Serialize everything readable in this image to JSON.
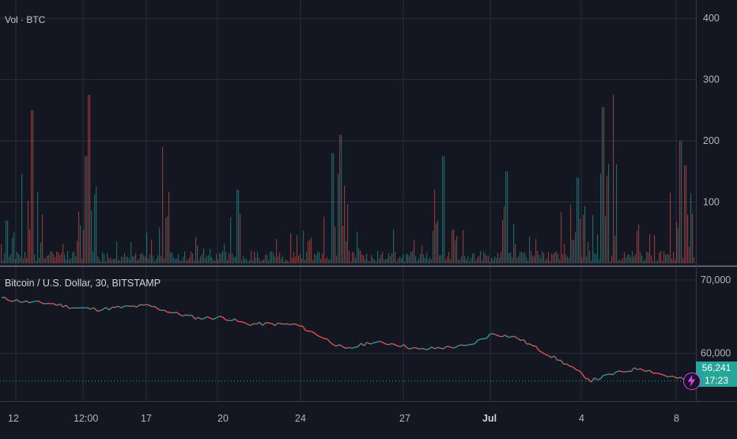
{
  "volume_pane": {
    "label": "Vol · BTC",
    "axis_ticks": [
      "400",
      "300",
      "200",
      "100"
    ]
  },
  "price_pane": {
    "label": "Bitcoin / U.S. Dollar, 30, BITSTAMP",
    "axis_ticks": [
      "70,000",
      "60,000"
    ],
    "last_price": "56,241",
    "countdown": "17:23"
  },
  "time_axis": {
    "labels": [
      "12",
      "12:00",
      "17",
      "20",
      "24",
      "27",
      "Jul",
      "4",
      "8"
    ]
  },
  "colors": {
    "background": "#131722",
    "up": "#26a69a",
    "down": "#ef5350",
    "grid": "#2a2e39",
    "axis_text": "#b2b5be",
    "badge": "#26a69a",
    "lightning": "#e040fb"
  },
  "chart_data": [
    {
      "type": "bar",
      "title": "Vol · BTC",
      "ylim": [
        0,
        430
      ],
      "yticks": [
        100,
        200,
        300,
        400
      ],
      "approx_volume_spikes": [
        {
          "x": "Jun 12 early",
          "value": 250
        },
        {
          "x": "Jun 13",
          "value": 275
        },
        {
          "x": "Jun 13 late",
          "value": 240
        },
        {
          "x": "Jun 17",
          "value": 190
        },
        {
          "x": "Jun 18",
          "value": 170
        },
        {
          "x": "Jun 20",
          "value": 120
        },
        {
          "x": "Jun 24",
          "value": 180
        },
        {
          "x": "Jun 25",
          "value": 210
        },
        {
          "x": "Jun 29",
          "value": 175
        },
        {
          "x": "Jul 1",
          "value": 150
        },
        {
          "x": "Jul 4",
          "value": 140
        },
        {
          "x": "Jul 5",
          "value": 255
        },
        {
          "x": "Jul 6",
          "value": 275
        },
        {
          "x": "Jul 8",
          "value": 200
        }
      ],
      "baseline_volume": 15
    },
    {
      "type": "line",
      "title": "Bitcoin / U.S. Dollar, 30, BITSTAMP",
      "ylim": [
        53500,
        71500
      ],
      "yticks": [
        60000,
        70000
      ],
      "x": [
        "Jun 11",
        "Jun 12",
        "Jun 13",
        "Jun 14",
        "Jun 15",
        "Jun 16",
        "Jun 17",
        "Jun 18",
        "Jun 19",
        "Jun 20",
        "Jun 21",
        "Jun 22",
        "Jun 23",
        "Jun 24",
        "Jun 25",
        "Jun 26",
        "Jun 27",
        "Jun 28",
        "Jun 29",
        "Jun 30",
        "Jul 1",
        "Jul 2",
        "Jul 3",
        "Jul 4",
        "Jul 5",
        "Jul 6",
        "Jul 7",
        "Jul 8",
        "Jul 8 close"
      ],
      "values": [
        67500,
        67000,
        66800,
        66200,
        66000,
        66300,
        66500,
        65500,
        64800,
        64900,
        64000,
        64000,
        63900,
        62300,
        60500,
        61500,
        61300,
        60500,
        60800,
        61000,
        62700,
        62100,
        60300,
        58500,
        56300,
        57300,
        58000,
        57000,
        56241
      ]
    }
  ]
}
